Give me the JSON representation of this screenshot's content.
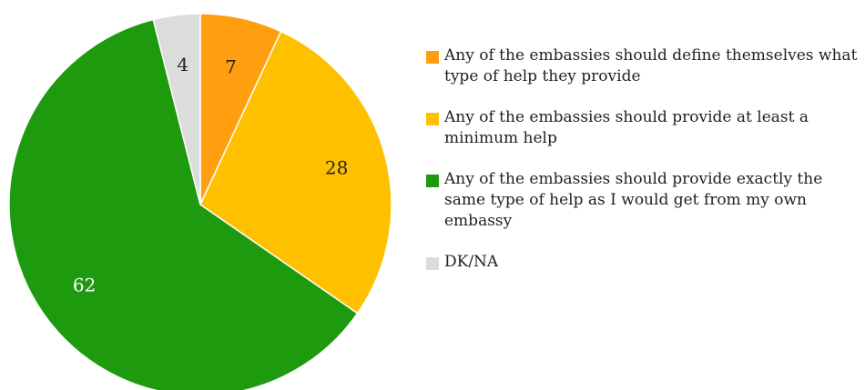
{
  "chart_data": {
    "type": "pie",
    "title": "",
    "slices": [
      {
        "label": "Any of the embassies should define themselves what type of help they provide",
        "value": 7,
        "color": "#FF9E0E"
      },
      {
        "label": "Any of the embassies should provide at least a minimum help",
        "value": 28,
        "color": "#FFC000"
      },
      {
        "label": "Any of the embassies should provide exactly the same type of help as I would get from my own embassy",
        "value": 62,
        "color": "#1E9A0F"
      },
      {
        "label": "DK/NA",
        "value": 4,
        "color": "#DCDCDC"
      }
    ],
    "legend_position": "right"
  }
}
